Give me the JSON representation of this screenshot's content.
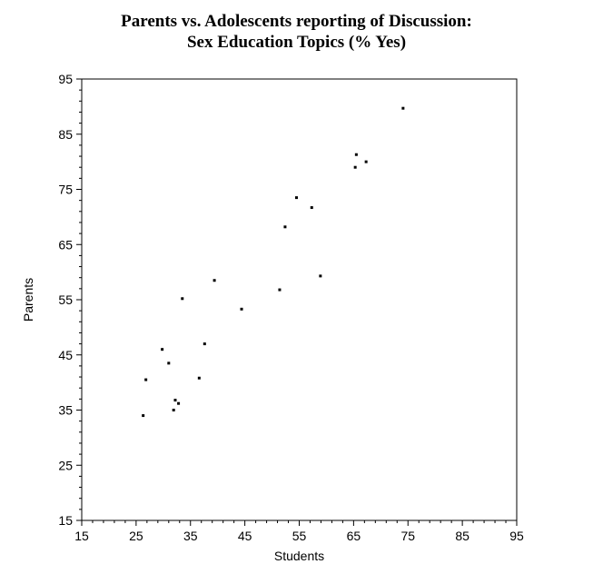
{
  "chart_data": {
    "type": "scatter",
    "title_line1": "Parents vs. Adolescents reporting of Discussion:",
    "title_line2": "Sex Education Topics (% Yes)",
    "xlabel": "Students",
    "ylabel": "Parents",
    "xlim": [
      15,
      95
    ],
    "ylim": [
      15,
      95
    ],
    "xticks": [
      15,
      25,
      35,
      45,
      55,
      65,
      75,
      85,
      95
    ],
    "yticks": [
      15,
      25,
      35,
      45,
      55,
      65,
      75,
      85,
      95
    ],
    "grid": false,
    "marker_color": "#000000",
    "points": [
      {
        "x": 26.3,
        "y": 34
      },
      {
        "x": 26.8,
        "y": 40.5
      },
      {
        "x": 29.8,
        "y": 46
      },
      {
        "x": 31,
        "y": 43.5
      },
      {
        "x": 31.9,
        "y": 35
      },
      {
        "x": 32.2,
        "y": 36.8
      },
      {
        "x": 32.8,
        "y": 36.2
      },
      {
        "x": 33.5,
        "y": 55.2
      },
      {
        "x": 36.6,
        "y": 40.8
      },
      {
        "x": 37.6,
        "y": 47
      },
      {
        "x": 39.4,
        "y": 58.5
      },
      {
        "x": 44.4,
        "y": 53.3
      },
      {
        "x": 51.4,
        "y": 56.8
      },
      {
        "x": 52.4,
        "y": 68.2
      },
      {
        "x": 54.5,
        "y": 73.5
      },
      {
        "x": 57.3,
        "y": 71.7
      },
      {
        "x": 58.9,
        "y": 59.3
      },
      {
        "x": 65.3,
        "y": 79
      },
      {
        "x": 65.5,
        "y": 81.3
      },
      {
        "x": 67.3,
        "y": 80
      },
      {
        "x": 74.1,
        "y": 89.7
      }
    ]
  }
}
